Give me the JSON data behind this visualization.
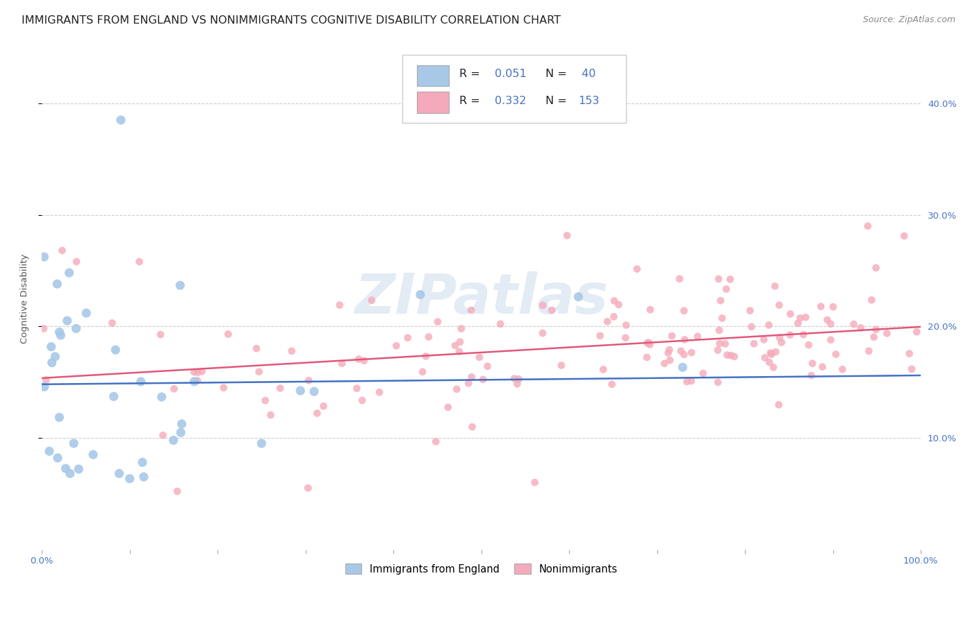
{
  "title": "IMMIGRANTS FROM ENGLAND VS NONIMMIGRANTS COGNITIVE DISABILITY CORRELATION CHART",
  "source": "Source: ZipAtlas.com",
  "ylabel": "Cognitive Disability",
  "watermark": "ZIPatlas",
  "immigrants_R": 0.051,
  "immigrants_N": 40,
  "nonimmigrants_R": 0.332,
  "nonimmigrants_N": 153,
  "color_immigrants": "#a8c8e8",
  "color_nonimmigrants": "#f5aabb",
  "color_line_immigrants": "#4472c4",
  "color_line_nonimmigrants": "#e05878",
  "color_text_blue": "#4472c4",
  "xlim": [
    0,
    1
  ],
  "ylim": [
    0,
    0.45
  ],
  "background_color": "#ffffff",
  "grid_color": "#cccccc",
  "title_fontsize": 11.5,
  "source_fontsize": 9
}
